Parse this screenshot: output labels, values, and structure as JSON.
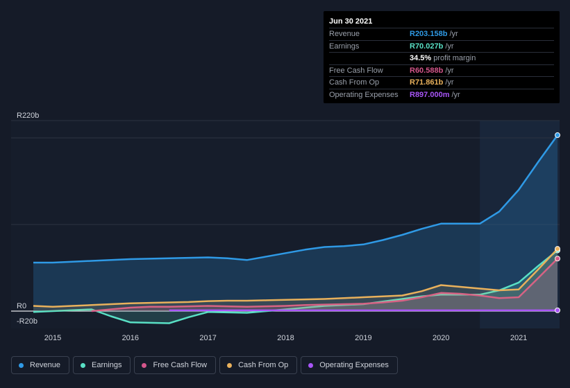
{
  "tooltip": {
    "date": "Jun 30 2021",
    "rows": [
      {
        "label": "Revenue",
        "value": "R203.158b",
        "unit": "/yr",
        "color": "#2f9ae6"
      },
      {
        "label": "Earnings",
        "value": "R70.027b",
        "unit": "/yr",
        "color": "#59e0c5"
      },
      {
        "label": "",
        "value": "34.5%",
        "unit": "profit margin",
        "color": "#ffffff"
      },
      {
        "label": "Free Cash Flow",
        "value": "R60.588b",
        "unit": "/yr",
        "color": "#d4568b"
      },
      {
        "label": "Cash From Op",
        "value": "R71.861b",
        "unit": "/yr",
        "color": "#e9b15c"
      },
      {
        "label": "Operating Expenses",
        "value": "R897.000m",
        "unit": "/yr",
        "color": "#a855f7"
      }
    ]
  },
  "legend": [
    {
      "label": "Revenue",
      "color": "#2f9ae6"
    },
    {
      "label": "Earnings",
      "color": "#59e0c5"
    },
    {
      "label": "Free Cash Flow",
      "color": "#d4568b"
    },
    {
      "label": "Cash From Op",
      "color": "#e9b15c"
    },
    {
      "label": "Operating Expenses",
      "color": "#a855f7"
    }
  ],
  "chart_data": {
    "type": "area",
    "y_unit": "R b",
    "ylim": [
      -20,
      220
    ],
    "xlim": [
      2014.75,
      2021.5
    ],
    "y_tick_labels": [
      {
        "value": 220,
        "label": "R220b"
      },
      {
        "value": 0,
        "label": "R0"
      },
      {
        "value": -20,
        "label": "-R20b"
      }
    ],
    "x_tick_labels": [
      {
        "value": 2015,
        "label": "2015"
      },
      {
        "value": 2016,
        "label": "2016"
      },
      {
        "value": 2017,
        "label": "2017"
      },
      {
        "value": 2018,
        "label": "2018"
      },
      {
        "value": 2019,
        "label": "2019"
      },
      {
        "value": 2020,
        "label": "2020"
      },
      {
        "value": 2021,
        "label": "2021"
      }
    ],
    "highlight_from": 2020.5,
    "series": [
      {
        "name": "Revenue",
        "color": "#2f9ae6",
        "fill": true,
        "points": [
          [
            2014.75,
            56
          ],
          [
            2015.0,
            56
          ],
          [
            2015.25,
            57
          ],
          [
            2015.5,
            58
          ],
          [
            2015.75,
            59
          ],
          [
            2016.0,
            60
          ],
          [
            2016.25,
            60.5
          ],
          [
            2016.5,
            61
          ],
          [
            2016.75,
            61.5
          ],
          [
            2017.0,
            62
          ],
          [
            2017.25,
            61
          ],
          [
            2017.5,
            59
          ],
          [
            2017.75,
            63
          ],
          [
            2018.0,
            67
          ],
          [
            2018.25,
            71
          ],
          [
            2018.5,
            74
          ],
          [
            2018.75,
            75
          ],
          [
            2019.0,
            77
          ],
          [
            2019.25,
            82
          ],
          [
            2019.5,
            88
          ],
          [
            2019.75,
            95
          ],
          [
            2020.0,
            101
          ],
          [
            2020.25,
            101
          ],
          [
            2020.5,
            101
          ],
          [
            2020.75,
            115
          ],
          [
            2021.0,
            140
          ],
          [
            2021.25,
            172
          ],
          [
            2021.5,
            203.158
          ]
        ]
      },
      {
        "name": "Earnings",
        "color": "#59e0c5",
        "fill": true,
        "points": [
          [
            2014.75,
            -1
          ],
          [
            2015.0,
            0
          ],
          [
            2015.25,
            1
          ],
          [
            2015.5,
            2
          ],
          [
            2015.75,
            -6
          ],
          [
            2016.0,
            -13
          ],
          [
            2016.25,
            -13.5
          ],
          [
            2016.5,
            -14
          ],
          [
            2016.75,
            -7
          ],
          [
            2017.0,
            -1
          ],
          [
            2017.25,
            -1.5
          ],
          [
            2017.5,
            -2
          ],
          [
            2017.75,
            0
          ],
          [
            2018.0,
            2
          ],
          [
            2018.25,
            4
          ],
          [
            2018.5,
            6
          ],
          [
            2018.75,
            7
          ],
          [
            2019.0,
            8
          ],
          [
            2019.25,
            11
          ],
          [
            2019.5,
            14
          ],
          [
            2019.75,
            17
          ],
          [
            2020.0,
            19
          ],
          [
            2020.25,
            19
          ],
          [
            2020.5,
            19
          ],
          [
            2020.75,
            24
          ],
          [
            2021.0,
            33
          ],
          [
            2021.25,
            52
          ],
          [
            2021.5,
            70.027
          ]
        ]
      },
      {
        "name": "Free Cash Flow",
        "color": "#d4568b",
        "fill": true,
        "points": [
          [
            2015.5,
            0
          ],
          [
            2015.75,
            2
          ],
          [
            2016.0,
            4
          ],
          [
            2016.25,
            5
          ],
          [
            2016.5,
            5
          ],
          [
            2016.75,
            5.5
          ],
          [
            2017.0,
            6
          ],
          [
            2017.25,
            5.5
          ],
          [
            2017.5,
            5
          ],
          [
            2017.75,
            5.5
          ],
          [
            2018.0,
            6
          ],
          [
            2018.25,
            7
          ],
          [
            2018.5,
            7.5
          ],
          [
            2018.75,
            8
          ],
          [
            2019.0,
            8.5
          ],
          [
            2019.25,
            10
          ],
          [
            2019.5,
            12
          ],
          [
            2019.75,
            16
          ],
          [
            2020.0,
            21
          ],
          [
            2020.25,
            20
          ],
          [
            2020.5,
            18
          ],
          [
            2020.75,
            15
          ],
          [
            2021.0,
            16
          ],
          [
            2021.25,
            38
          ],
          [
            2021.5,
            60.588
          ]
        ]
      },
      {
        "name": "Cash From Op",
        "color": "#e9b15c",
        "fill": true,
        "points": [
          [
            2014.75,
            6
          ],
          [
            2015.0,
            5
          ],
          [
            2015.25,
            6
          ],
          [
            2015.5,
            7
          ],
          [
            2015.75,
            8
          ],
          [
            2016.0,
            9
          ],
          [
            2016.25,
            9.5
          ],
          [
            2016.5,
            10
          ],
          [
            2016.75,
            10.5
          ],
          [
            2017.0,
            11.5
          ],
          [
            2017.25,
            12
          ],
          [
            2017.5,
            12
          ],
          [
            2017.75,
            12.5
          ],
          [
            2018.0,
            13
          ],
          [
            2018.25,
            13.5
          ],
          [
            2018.5,
            14
          ],
          [
            2018.75,
            15
          ],
          [
            2019.0,
            16
          ],
          [
            2019.25,
            17
          ],
          [
            2019.5,
            18
          ],
          [
            2019.75,
            23
          ],
          [
            2020.0,
            30
          ],
          [
            2020.25,
            28
          ],
          [
            2020.5,
            26
          ],
          [
            2020.75,
            24
          ],
          [
            2021.0,
            25
          ],
          [
            2021.25,
            48
          ],
          [
            2021.5,
            71.861
          ]
        ]
      },
      {
        "name": "Operating Expenses",
        "color": "#a855f7",
        "fill": false,
        "points": [
          [
            2016.5,
            0.9
          ],
          [
            2017.0,
            0.9
          ],
          [
            2018.0,
            0.9
          ],
          [
            2019.0,
            0.9
          ],
          [
            2020.0,
            0.9
          ],
          [
            2021.0,
            0.9
          ],
          [
            2021.5,
            0.897
          ]
        ]
      }
    ]
  }
}
